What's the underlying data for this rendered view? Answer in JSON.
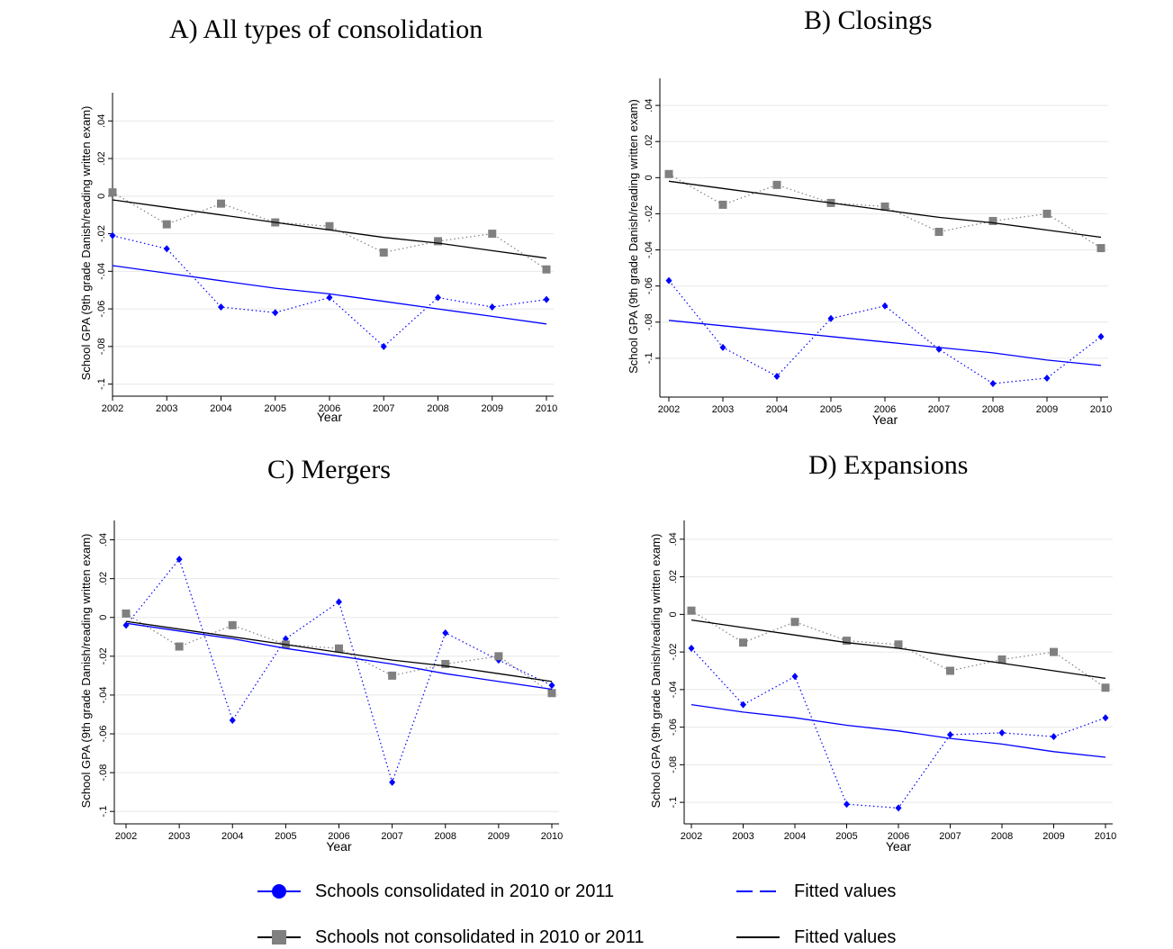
{
  "chart_data": [
    {
      "type": "line",
      "title": "A)  All types of consolidation",
      "xlabel": "Year",
      "ylabel": "School GPA (9th grade Danish/reading written exam)",
      "x": [
        2002,
        2003,
        2004,
        2005,
        2006,
        2007,
        2008,
        2009,
        2010
      ],
      "xticks": [
        "2002",
        "2003",
        "2004",
        "2005",
        "2006",
        "2007",
        "2008",
        "2009",
        "2010"
      ],
      "yticks": [
        0.04,
        0.02,
        0,
        -0.02,
        -0.04,
        -0.06,
        -0.08,
        -0.1
      ],
      "ytick_labels": [
        ".04",
        ".02",
        "0",
        "-.02",
        "-.04",
        "-.06",
        "-.08",
        "-.1"
      ],
      "ylim": [
        -0.105,
        0.055
      ],
      "series": [
        {
          "name": "Schools consolidated in 2010 or 2011",
          "color": "#0000ff",
          "marker": "diamond",
          "values": [
            -0.021,
            -0.028,
            -0.059,
            -0.062,
            -0.054,
            -0.08,
            -0.054,
            -0.059,
            -0.055
          ]
        },
        {
          "name": "Schools not consolidated in 2010 or 2011",
          "color": "#808080",
          "marker": "square",
          "values": [
            0.002,
            -0.015,
            -0.004,
            -0.014,
            -0.016,
            -0.03,
            -0.024,
            -0.02,
            -0.039
          ]
        },
        {
          "name": "Fitted values",
          "color": "#0000ff",
          "line": "fit",
          "values": [
            -0.037,
            -0.041,
            -0.045,
            -0.049,
            -0.052,
            -0.056,
            -0.06,
            -0.064,
            -0.068
          ]
        },
        {
          "name": "Fitted values",
          "color": "#000000",
          "line": "fit",
          "values": [
            -0.002,
            -0.006,
            -0.01,
            -0.014,
            -0.018,
            -0.022,
            -0.025,
            -0.029,
            -0.033
          ]
        }
      ]
    },
    {
      "type": "line",
      "title": "B) Closings",
      "xlabel": "Year",
      "ylabel": "School GPA (9th grade Danish/reading written exam)",
      "x": [
        2002,
        2003,
        2004,
        2005,
        2006,
        2007,
        2008,
        2009,
        2010
      ],
      "xticks": [
        "2002",
        "2003",
        "2004",
        "2005",
        "2006",
        "2007",
        "2008",
        "2009",
        "2010"
      ],
      "yticks": [
        0.04,
        0.02,
        0,
        -0.02,
        -0.04,
        -0.06,
        -0.08,
        -0.1
      ],
      "ytick_labels": [
        ".04",
        ".02",
        "0",
        "-.02",
        "-.04",
        "-.06",
        "-.08",
        "-.1"
      ],
      "ylim": [
        -0.12,
        0.055
      ],
      "series": [
        {
          "name": "Schools consolidated in 2010 or 2011",
          "color": "#0000ff",
          "marker": "diamond",
          "values": [
            -0.057,
            -0.094,
            -0.11,
            -0.078,
            -0.071,
            -0.095,
            -0.114,
            -0.111,
            -0.088
          ]
        },
        {
          "name": "Schools not consolidated in 2010 or 2011",
          "color": "#808080",
          "marker": "square",
          "values": [
            0.002,
            -0.015,
            -0.004,
            -0.014,
            -0.016,
            -0.03,
            -0.024,
            -0.02,
            -0.039
          ]
        },
        {
          "name": "Fitted values",
          "color": "#0000ff",
          "line": "fit",
          "values": [
            -0.079,
            -0.082,
            -0.085,
            -0.088,
            -0.091,
            -0.094,
            -0.097,
            -0.101,
            -0.104
          ]
        },
        {
          "name": "Fitted values",
          "color": "#000000",
          "line": "fit",
          "values": [
            -0.002,
            -0.006,
            -0.01,
            -0.014,
            -0.018,
            -0.022,
            -0.025,
            -0.029,
            -0.033
          ]
        }
      ]
    },
    {
      "type": "line",
      "title": "C) Mergers",
      "xlabel": "Year",
      "ylabel": "School GPA (9th grade Danish/reading written exam)",
      "x": [
        2002,
        2003,
        2004,
        2005,
        2006,
        2007,
        2008,
        2009,
        2010
      ],
      "xticks": [
        "2002",
        "2003",
        "2004",
        "2005",
        "2006",
        "2007",
        "2008",
        "2009",
        "2010"
      ],
      "yticks": [
        0.04,
        0.02,
        0,
        -0.02,
        -0.04,
        -0.06,
        -0.08,
        -0.1
      ],
      "ytick_labels": [
        ".04",
        ".02",
        "0",
        "-.02",
        "-.04",
        "-.06",
        "-.08",
        "-.1"
      ],
      "ylim": [
        -0.105,
        0.05
      ],
      "series": [
        {
          "name": "Schools consolidated in 2010 or 2011",
          "color": "#0000ff",
          "marker": "diamond",
          "values": [
            -0.004,
            0.03,
            -0.053,
            -0.011,
            0.008,
            -0.085,
            -0.008,
            -0.022,
            -0.035
          ]
        },
        {
          "name": "Schools not consolidated in 2010 or 2011",
          "color": "#808080",
          "marker": "square",
          "values": [
            0.002,
            -0.015,
            -0.004,
            -0.014,
            -0.016,
            -0.03,
            -0.024,
            -0.02,
            -0.039
          ]
        },
        {
          "name": "Fitted values",
          "color": "#0000ff",
          "line": "fit",
          "values": [
            -0.003,
            -0.007,
            -0.011,
            -0.016,
            -0.02,
            -0.024,
            -0.029,
            -0.033,
            -0.037
          ]
        },
        {
          "name": "Fitted values",
          "color": "#000000",
          "line": "fit",
          "values": [
            -0.002,
            -0.006,
            -0.01,
            -0.014,
            -0.018,
            -0.022,
            -0.025,
            -0.029,
            -0.033
          ]
        }
      ]
    },
    {
      "type": "line",
      "title": "D) Expansions",
      "xlabel": "Year",
      "ylabel": "School GPA (9th grade Danish/reading written exam)",
      "x": [
        2002,
        2003,
        2004,
        2005,
        2006,
        2007,
        2008,
        2009,
        2010
      ],
      "xticks": [
        "2002",
        "2003",
        "2004",
        "2005",
        "2006",
        "2007",
        "2008",
        "2009",
        "2010"
      ],
      "yticks": [
        0.04,
        0.02,
        0,
        -0.02,
        -0.04,
        -0.06,
        -0.08,
        -0.1
      ],
      "ytick_labels": [
        ".04",
        ".02",
        "0",
        "-.02",
        "-.04",
        "-.06",
        "-.08",
        "-.1"
      ],
      "ylim": [
        -0.11,
        0.05
      ],
      "series": [
        {
          "name": "Schools consolidated in 2010 or 2011",
          "color": "#0000ff",
          "marker": "diamond",
          "values": [
            -0.018,
            -0.048,
            -0.033,
            -0.101,
            -0.103,
            -0.064,
            -0.063,
            -0.065,
            -0.055
          ]
        },
        {
          "name": "Schools not consolidated in 2010 or 2011",
          "color": "#808080",
          "marker": "square",
          "values": [
            0.002,
            -0.015,
            -0.004,
            -0.014,
            -0.016,
            -0.03,
            -0.024,
            -0.02,
            -0.039
          ]
        },
        {
          "name": "Fitted values",
          "color": "#0000ff",
          "line": "fit",
          "values": [
            -0.048,
            -0.052,
            -0.055,
            -0.059,
            -0.062,
            -0.066,
            -0.069,
            -0.073,
            -0.076
          ]
        },
        {
          "name": "Fitted values",
          "color": "#000000",
          "line": "fit",
          "values": [
            -0.003,
            -0.007,
            -0.011,
            -0.015,
            -0.018,
            -0.022,
            -0.026,
            -0.03,
            -0.034
          ]
        }
      ]
    }
  ],
  "legend": {
    "items": [
      {
        "label": "Schools consolidated in 2010 or 2011",
        "color": "#0000ff",
        "marker": "circle"
      },
      {
        "label": "Fitted values",
        "color": "#0000ff",
        "style": "dashed"
      },
      {
        "label": "Schools not consolidated in 2010 or 2011",
        "color": "#808080",
        "marker": "square"
      },
      {
        "label": "Fitted values",
        "color": "#000000",
        "style": "solid"
      }
    ]
  }
}
